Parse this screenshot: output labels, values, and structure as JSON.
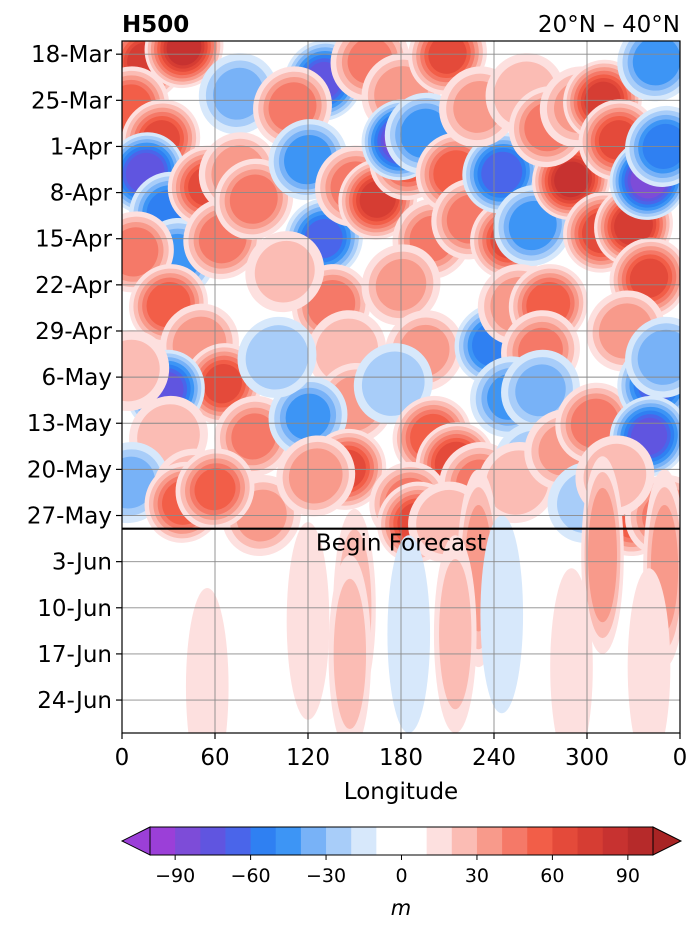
{
  "chart_data": {
    "type": "heatmap",
    "title_left": "H500",
    "title_right": "20°N – 40°N",
    "xlabel": "Longitude",
    "x_ticks": [
      "0",
      "60",
      "120",
      "180",
      "240",
      "300",
      "0"
    ],
    "x_tick_values": [
      0,
      60,
      120,
      180,
      240,
      300,
      360
    ],
    "xlim": [
      0,
      360
    ],
    "y_ticks": [
      "18-Mar",
      "25-Mar",
      "1-Apr",
      "8-Apr",
      "15-Apr",
      "22-Apr",
      "29-Apr",
      "6-May",
      "13-May",
      "20-May",
      "27-May",
      "3-Jun",
      "10-Jun",
      "17-Jun",
      "24-Jun"
    ],
    "y_tick_days": [
      2,
      9,
      16,
      23,
      30,
      37,
      44,
      51,
      58,
      65,
      72,
      79,
      86,
      93,
      100
    ],
    "ylim_days": [
      0,
      105
    ],
    "y_direction": "time increases downward",
    "forecast_start_day": 74,
    "forecast_label": "Begin Forecast",
    "grid": true,
    "colorbar": {
      "label": "m",
      "orientation": "horizontal",
      "placement": "bottom",
      "ticks": [
        "−90",
        "−60",
        "−30",
        "0",
        "30",
        "60",
        "90"
      ],
      "tick_values": [
        -90,
        -60,
        -30,
        0,
        30,
        60,
        90
      ],
      "levels": [
        -100,
        -90,
        -80,
        -70,
        -60,
        -50,
        -40,
        -30,
        -20,
        -10,
        10,
        20,
        30,
        40,
        50,
        60,
        70,
        80,
        90,
        100
      ],
      "colors": [
        "#9b3fd8",
        "#7d4cd8",
        "#6055e0",
        "#4a65ea",
        "#2f80f2",
        "#3d95f5",
        "#78b2f7",
        "#a8cdf9",
        "#d7e8fb",
        "#ffffff",
        "#fde0df",
        "#fbbcb4",
        "#f89a8b",
        "#f57968",
        "#f25e48",
        "#e44a3a",
        "#d63d33",
        "#c73230",
        "#b62a2a"
      ],
      "extend": "both",
      "extend_low_color": "#9b3fd8",
      "extend_high_color": "#a82424"
    },
    "anomalies": [
      {
        "lon": 15,
        "day": 3,
        "value": 70
      },
      {
        "lon": 40,
        "day": 1,
        "value": 80
      },
      {
        "lon": 5,
        "day": 10,
        "value": 55
      },
      {
        "lon": 25,
        "day": 15,
        "value": 60
      },
      {
        "lon": 15,
        "day": 20,
        "value": -75
      },
      {
        "lon": 30,
        "day": 26,
        "value": -55
      },
      {
        "lon": 35,
        "day": 33,
        "value": -45
      },
      {
        "lon": 55,
        "day": 22,
        "value": 60
      },
      {
        "lon": 65,
        "day": 30,
        "value": 45
      },
      {
        "lon": 8,
        "day": 32,
        "value": 45
      },
      {
        "lon": 30,
        "day": 40,
        "value": 55
      },
      {
        "lon": 50,
        "day": 46,
        "value": 35
      },
      {
        "lon": 65,
        "day": 52,
        "value": 60
      },
      {
        "lon": 28,
        "day": 53,
        "value": -70
      },
      {
        "lon": 30,
        "day": 60,
        "value": 25
      },
      {
        "lon": 5,
        "day": 67,
        "value": -30
      },
      {
        "lon": 45,
        "day": 68,
        "value": 35
      },
      {
        "lon": 85,
        "day": 60,
        "value": 40
      },
      {
        "lon": 90,
        "day": 72,
        "value": 30
      },
      {
        "lon": 40,
        "day": 70,
        "value": 55
      },
      {
        "lon": 60,
        "day": 68,
        "value": 50
      },
      {
        "lon": 75,
        "day": 8,
        "value": -30
      },
      {
        "lon": 75,
        "day": 20,
        "value": 35
      },
      {
        "lon": 85,
        "day": 24,
        "value": 45
      },
      {
        "lon": 130,
        "day": 6,
        "value": -70
      },
      {
        "lon": 110,
        "day": 10,
        "value": 45
      },
      {
        "lon": 160,
        "day": 3,
        "value": 40
      },
      {
        "lon": 180,
        "day": 8,
        "value": 35
      },
      {
        "lon": 120,
        "day": 18,
        "value": -45
      },
      {
        "lon": 130,
        "day": 30,
        "value": -60
      },
      {
        "lon": 150,
        "day": 22,
        "value": 45
      },
      {
        "lon": 165,
        "day": 24,
        "value": 70
      },
      {
        "lon": 185,
        "day": 18,
        "value": 55
      },
      {
        "lon": 180,
        "day": 15,
        "value": -80
      },
      {
        "lon": 195,
        "day": 14,
        "value": -45
      },
      {
        "lon": 210,
        "day": 2,
        "value": 60
      },
      {
        "lon": 200,
        "day": 30,
        "value": 40
      },
      {
        "lon": 135,
        "day": 40,
        "value": 45
      },
      {
        "lon": 145,
        "day": 47,
        "value": 25
      },
      {
        "lon": 180,
        "day": 37,
        "value": 30
      },
      {
        "lon": 195,
        "day": 47,
        "value": 30
      },
      {
        "lon": 150,
        "day": 55,
        "value": 35
      },
      {
        "lon": 120,
        "day": 57,
        "value": -40
      },
      {
        "lon": 145,
        "day": 65,
        "value": 60
      },
      {
        "lon": 125,
        "day": 66,
        "value": 35
      },
      {
        "lon": 175,
        "day": 52,
        "value": -25
      },
      {
        "lon": 200,
        "day": 60,
        "value": 55
      },
      {
        "lon": 215,
        "day": 64,
        "value": 65
      },
      {
        "lon": 230,
        "day": 67,
        "value": 40
      },
      {
        "lon": 185,
        "day": 70,
        "value": 45
      },
      {
        "lon": 190,
        "day": 73,
        "value": 60
      },
      {
        "lon": 210,
        "day": 73,
        "value": 25
      },
      {
        "lon": 215,
        "day": 20,
        "value": 55
      },
      {
        "lon": 225,
        "day": 27,
        "value": 45
      },
      {
        "lon": 250,
        "day": 30,
        "value": 60
      },
      {
        "lon": 245,
        "day": 20,
        "value": -65
      },
      {
        "lon": 265,
        "day": 28,
        "value": -45
      },
      {
        "lon": 230,
        "day": 10,
        "value": 30
      },
      {
        "lon": 260,
        "day": 8,
        "value": 25
      },
      {
        "lon": 240,
        "day": 46,
        "value": -55
      },
      {
        "lon": 255,
        "day": 40,
        "value": 35
      },
      {
        "lon": 275,
        "day": 40,
        "value": 55
      },
      {
        "lon": 270,
        "day": 47,
        "value": 40
      },
      {
        "lon": 250,
        "day": 54,
        "value": -40
      },
      {
        "lon": 270,
        "day": 53,
        "value": -30
      },
      {
        "lon": 265,
        "day": 64,
        "value": -25
      },
      {
        "lon": 255,
        "day": 67,
        "value": 25
      },
      {
        "lon": 285,
        "day": 62,
        "value": 30
      },
      {
        "lon": 290,
        "day": 21,
        "value": 80
      },
      {
        "lon": 275,
        "day": 13,
        "value": 45
      },
      {
        "lon": 295,
        "day": 10,
        "value": 30
      },
      {
        "lon": 310,
        "day": 9,
        "value": 70
      },
      {
        "lon": 320,
        "day": 15,
        "value": 60
      },
      {
        "lon": 310,
        "day": 29,
        "value": 65
      },
      {
        "lon": 330,
        "day": 28,
        "value": 75
      },
      {
        "lon": 340,
        "day": 36,
        "value": 60
      },
      {
        "lon": 340,
        "day": 21,
        "value": -85
      },
      {
        "lon": 350,
        "day": 16,
        "value": -55
      },
      {
        "lon": 345,
        "day": 3,
        "value": -45
      },
      {
        "lon": 325,
        "day": 44,
        "value": 35
      },
      {
        "lon": 305,
        "day": 58,
        "value": 45
      },
      {
        "lon": 345,
        "day": 52,
        "value": -60
      },
      {
        "lon": 340,
        "day": 60,
        "value": -70
      },
      {
        "lon": 350,
        "day": 48,
        "value": -35
      },
      {
        "lon": 300,
        "day": 70,
        "value": -20
      },
      {
        "lon": 330,
        "day": 72,
        "value": 55
      },
      {
        "lon": 350,
        "day": 72,
        "value": 40
      },
      {
        "lon": 318,
        "day": 66,
        "value": 25
      },
      {
        "lon": 5,
        "day": 50,
        "value": 20
      },
      {
        "lon": 100,
        "day": 48,
        "value": -25
      },
      {
        "lon": 105,
        "day": 35,
        "value": 20
      },
      {
        "lon": 230,
        "day": 80,
        "value": 30
      },
      {
        "lon": 310,
        "day": 78,
        "value": 35
      },
      {
        "lon": 350,
        "day": 80,
        "value": 30
      },
      {
        "lon": 150,
        "day": 86,
        "value": 25
      },
      {
        "lon": 147,
        "day": 93,
        "value": 20
      },
      {
        "lon": 185,
        "day": 90,
        "value": -15
      },
      {
        "lon": 245,
        "day": 87,
        "value": -15
      },
      {
        "lon": 215,
        "day": 90,
        "value": 20
      },
      {
        "lon": 120,
        "day": 88,
        "value": 15
      },
      {
        "lon": 55,
        "day": 98,
        "value": 15
      },
      {
        "lon": 290,
        "day": 95,
        "value": 15
      },
      {
        "lon": 340,
        "day": 95,
        "value": 15
      }
    ]
  }
}
